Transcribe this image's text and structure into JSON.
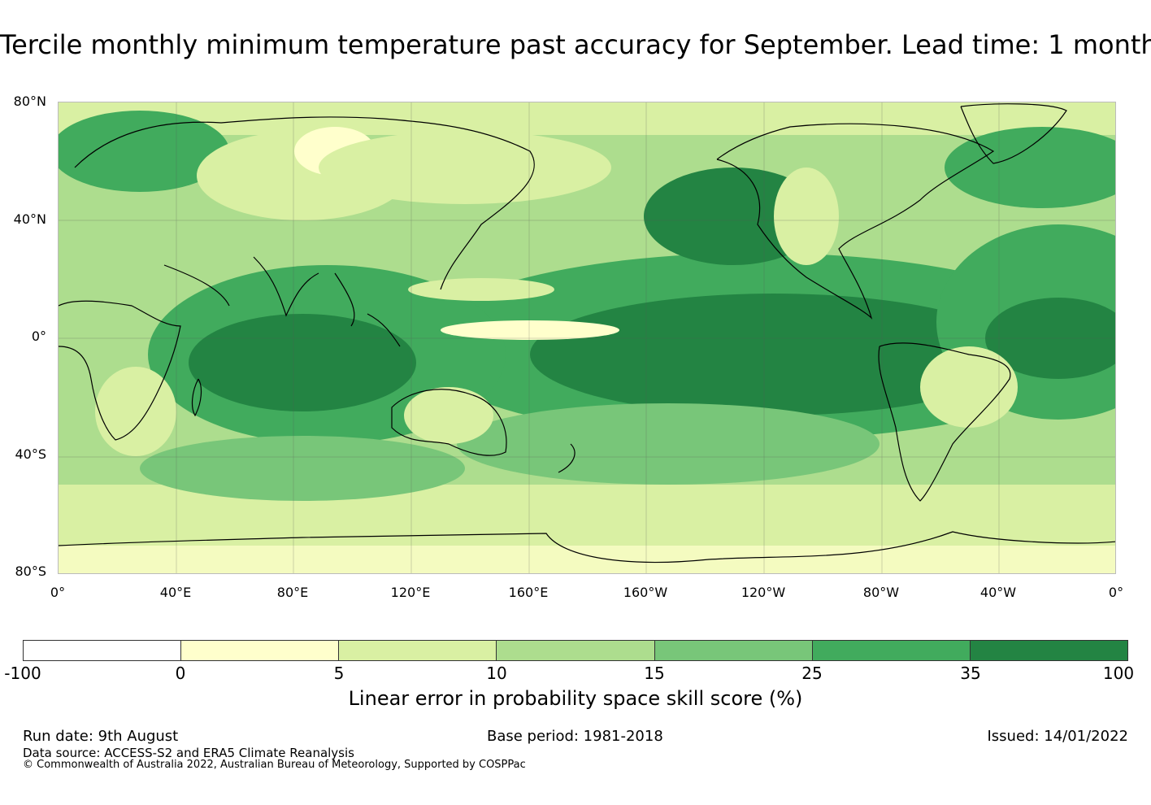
{
  "title": "Tercile monthly minimum temperature past accuracy for September. Lead time: 1 month",
  "map": {
    "lat_labels": [
      "80°N",
      "40°N",
      "0°",
      "40°S",
      "80°S"
    ],
    "lon_labels": [
      "0°",
      "40°E",
      "80°E",
      "120°E",
      "160°E",
      "160°W",
      "120°W",
      "80°W",
      "40°W",
      "0°"
    ]
  },
  "colorbar": {
    "ticks": [
      "-100",
      "0",
      "5",
      "10",
      "15",
      "25",
      "35",
      "100"
    ],
    "colors": [
      "#ffffff",
      "#ffffcc",
      "#d9f0a3",
      "#addd8e",
      "#78c679",
      "#41ab5d",
      "#238443"
    ],
    "label": "Linear error in probability space skill score (%)"
  },
  "footer": {
    "run_date": "Run date: 9th August",
    "base_period": "Base period: 1981-2018",
    "issued": "Issued: 14/01/2022",
    "data_source": "Data source: ACCESS-S2 and ERA5 Climate Reanalysis",
    "copyright": "© Commonwealth of Australia 2022, Australian Bureau of Meteorology, Supported by COSPPac"
  }
}
